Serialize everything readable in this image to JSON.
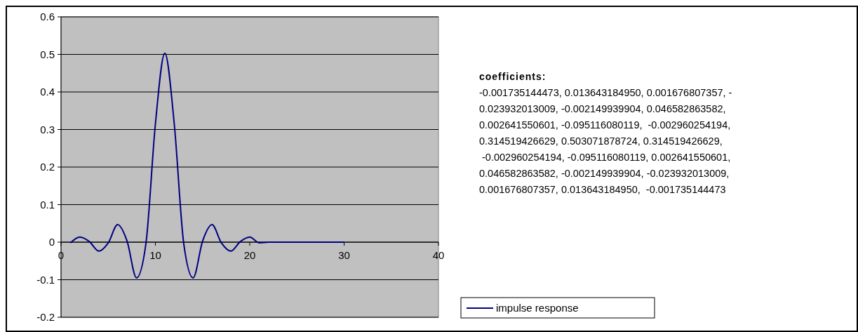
{
  "chart_data": {
    "type": "line",
    "x": [
      1,
      2,
      3,
      4,
      5,
      6,
      7,
      8,
      9,
      10,
      11,
      12,
      13,
      14,
      15,
      16,
      17,
      18,
      19,
      20,
      21,
      22,
      23,
      24,
      25,
      26,
      27,
      28,
      29,
      30
    ],
    "series": [
      {
        "name": "impulse response",
        "color": "#000080",
        "values": [
          -0.001735144473,
          0.01364318495,
          0.001676807357,
          -0.023932013009,
          -0.002149939904,
          0.046582863582,
          0.002641550601,
          -0.095116080119,
          -0.002960254194,
          0.314519426629,
          0.503071878724,
          0.314519426629,
          -0.002960254194,
          -0.095116080119,
          0.002641550601,
          0.046582863582,
          -0.002149939904,
          -0.023932013009,
          0.001676807357,
          0.01364318495,
          -0.001735144473,
          0,
          0,
          0,
          0,
          0,
          0,
          0,
          0,
          0
        ]
      }
    ],
    "xlim": [
      0,
      40
    ],
    "xticks": [
      0,
      10,
      20,
      30,
      40
    ],
    "ylim": [
      -0.2,
      0.6
    ],
    "yticks": [
      -0.2,
      -0.1,
      0,
      0.1,
      0.2,
      0.3,
      0.4,
      0.5,
      0.6
    ],
    "grid": "y",
    "legend": "right",
    "line_style": "solid",
    "annotations": [
      "coefficients:",
      "-0.001735144473, 0.013643184950, 0.001676807357, -",
      "0.023932013009, -0.002149939904, 0.046582863582,",
      "0.002641550601, -0.095116080119,  -0.002960254194,",
      "0.314519426629, 0.503071878724, 0.314519426629,",
      " -0.002960254194, -0.095116080119, 0.002641550601,",
      "0.046582863582, -0.002149939904, -0.023932013009,",
      "0.001676807357, 0.013643184950,  -0.001735144473"
    ]
  }
}
